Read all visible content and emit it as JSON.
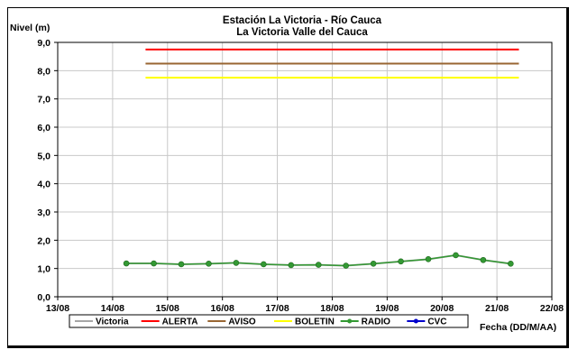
{
  "chart_data": {
    "type": "line",
    "title": "Estación La Victoria - Río Cauca",
    "subtitle": "La Victoria Valle del Cauca",
    "ylabel": "Nivel (m)",
    "xlabel": "Fecha (DD/M/AA)",
    "ylim": [
      0,
      9
    ],
    "xlim": [
      0,
      9
    ],
    "y_ticks": [
      "0,0",
      "1,0",
      "2,0",
      "3,0",
      "4,0",
      "5,0",
      "6,0",
      "7,0",
      "8,0",
      "9,0"
    ],
    "x_ticks": [
      "13/08",
      "14/08",
      "15/08",
      "16/08",
      "17/08",
      "18/08",
      "19/08",
      "20/08",
      "21/08",
      "22/08"
    ],
    "grid": true,
    "legend_position": "bottom",
    "series": [
      {
        "name": "Victoria",
        "color": "#a6a6a6",
        "x": [
          1.25,
          1.75,
          2.25,
          2.75,
          3.25,
          3.75,
          4.25,
          4.75,
          5.25,
          5.75,
          6.25,
          6.75,
          7.25,
          7.75,
          8.25
        ],
        "y": [
          1.18,
          1.18,
          1.15,
          1.17,
          1.2,
          1.15,
          1.12,
          1.13,
          1.1,
          1.17,
          1.25,
          1.33,
          1.47,
          1.3,
          1.17
        ]
      },
      {
        "name": "ALERTA",
        "color": "#ff0000",
        "x": [
          1.6,
          8.4
        ],
        "y": [
          8.75,
          8.75
        ]
      },
      {
        "name": "AVISO",
        "color": "#996633",
        "x": [
          1.6,
          8.4
        ],
        "y": [
          8.25,
          8.25
        ]
      },
      {
        "name": "BOLETIN",
        "color": "#ffff00",
        "x": [
          1.6,
          8.4
        ],
        "y": [
          7.75,
          7.75
        ]
      },
      {
        "name": "RADIO",
        "color": "#339933",
        "marker": "circle",
        "x": [
          1.25,
          1.75,
          2.25,
          2.75,
          3.25,
          3.75,
          4.25,
          4.75,
          5.25,
          5.75,
          6.25,
          6.75,
          7.25,
          7.75,
          8.25
        ],
        "y": [
          1.18,
          1.18,
          1.15,
          1.17,
          1.2,
          1.15,
          1.12,
          1.13,
          1.1,
          1.17,
          1.25,
          1.33,
          1.47,
          1.3,
          1.17
        ]
      },
      {
        "name": "CVC",
        "color": "#0000cc",
        "marker": "circle",
        "x": [],
        "y": []
      }
    ]
  }
}
